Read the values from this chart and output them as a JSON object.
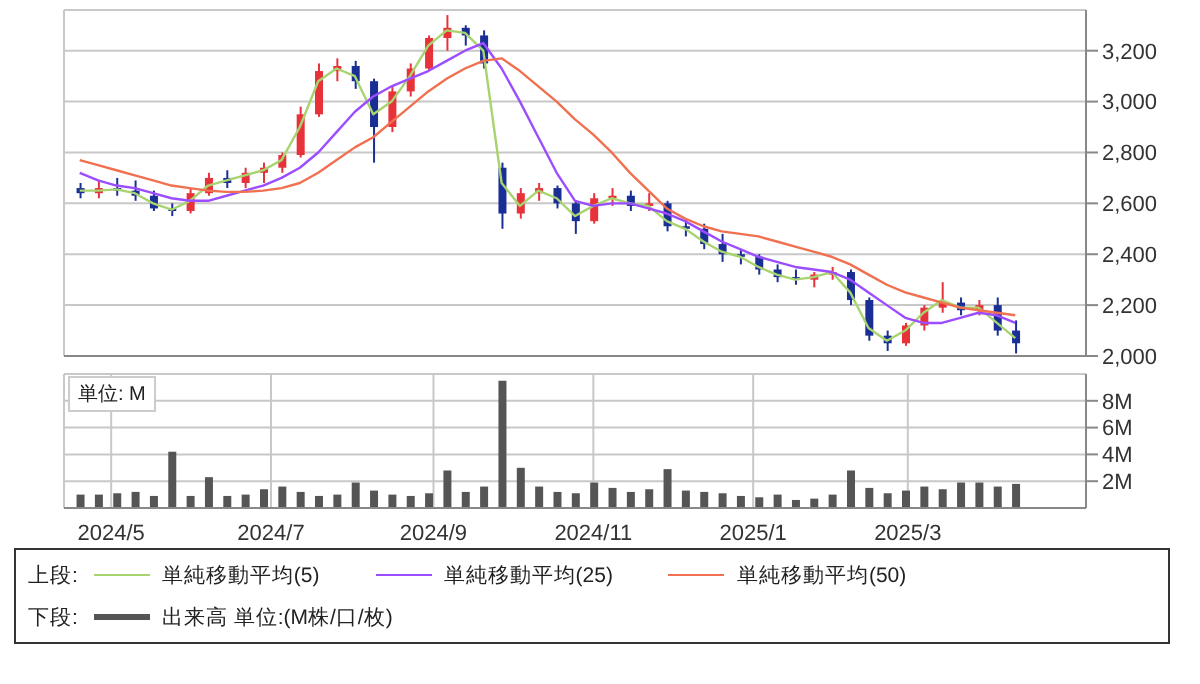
{
  "chart_data": [
    {
      "type": "candlestick",
      "legend_title": "上段:",
      "legend": "bottom",
      "grid": true,
      "tick_labels": "y",
      "x": [
        "2024-04-19",
        "2024-04-26",
        "2024-05-03",
        "2024-05-10",
        "2024-05-17",
        "2024-05-24",
        "2024-05-31",
        "2024-06-07",
        "2024-06-14",
        "2024-06-21",
        "2024-06-28",
        "2024-07-05",
        "2024-07-12",
        "2024-07-19",
        "2024-07-26",
        "2024-08-02",
        "2024-08-09",
        "2024-08-16",
        "2024-08-23",
        "2024-08-30",
        "2024-09-06",
        "2024-09-13",
        "2024-09-20",
        "2024-09-27",
        "2024-10-04",
        "2024-10-11",
        "2024-10-18",
        "2024-10-25",
        "2024-11-01",
        "2024-11-08",
        "2024-11-15",
        "2024-11-22",
        "2024-11-29",
        "2024-12-06",
        "2024-12-13",
        "2024-12-20",
        "2024-12-27",
        "2025-01-03",
        "2025-01-10",
        "2025-01-17",
        "2025-01-24",
        "2025-01-31",
        "2025-02-07",
        "2025-02-14",
        "2025-02-21",
        "2025-02-28",
        "2025-03-07",
        "2025-03-14",
        "2025-03-21",
        "2025-03-28",
        "2025-04-04",
        "2025-04-11"
      ],
      "ohlc": [
        [
          2660,
          2680,
          2620,
          2640
        ],
        [
          2640,
          2690,
          2620,
          2660
        ],
        [
          2660,
          2700,
          2630,
          2650
        ],
        [
          2650,
          2690,
          2610,
          2630
        ],
        [
          2630,
          2650,
          2570,
          2580
        ],
        [
          2580,
          2600,
          2550,
          2570
        ],
        [
          2570,
          2660,
          2560,
          2640
        ],
        [
          2640,
          2720,
          2630,
          2700
        ],
        [
          2700,
          2730,
          2660,
          2680
        ],
        [
          2680,
          2740,
          2660,
          2720
        ],
        [
          2720,
          2760,
          2680,
          2740
        ],
        [
          2740,
          2800,
          2720,
          2790
        ],
        [
          2790,
          2980,
          2780,
          2950
        ],
        [
          2950,
          3150,
          2940,
          3120
        ],
        [
          3120,
          3170,
          3080,
          3140
        ],
        [
          3140,
          3160,
          3050,
          3080
        ],
        [
          3080,
          3090,
          2760,
          2900
        ],
        [
          2900,
          3060,
          2880,
          3040
        ],
        [
          3040,
          3150,
          3020,
          3130
        ],
        [
          3130,
          3260,
          3120,
          3250
        ],
        [
          3250,
          3340,
          3200,
          3290
        ],
        [
          3290,
          3300,
          3220,
          3260
        ],
        [
          3260,
          3280,
          3130,
          3150
        ],
        [
          2740,
          2760,
          2500,
          2560
        ],
        [
          2560,
          2660,
          2540,
          2640
        ],
        [
          2640,
          2680,
          2610,
          2660
        ],
        [
          2660,
          2670,
          2580,
          2600
        ],
        [
          2600,
          2610,
          2480,
          2530
        ],
        [
          2530,
          2640,
          2520,
          2620
        ],
        [
          2620,
          2660,
          2590,
          2630
        ],
        [
          2630,
          2650,
          2570,
          2590
        ],
        [
          2590,
          2640,
          2570,
          2600
        ],
        [
          2600,
          2610,
          2490,
          2510
        ],
        [
          2510,
          2540,
          2470,
          2500
        ],
        [
          2500,
          2520,
          2420,
          2440
        ],
        [
          2440,
          2480,
          2370,
          2400
        ],
        [
          2400,
          2420,
          2360,
          2390
        ],
        [
          2390,
          2400,
          2320,
          2340
        ],
        [
          2340,
          2360,
          2290,
          2310
        ],
        [
          2310,
          2340,
          2280,
          2300
        ],
        [
          2300,
          2330,
          2270,
          2320
        ],
        [
          2320,
          2350,
          2300,
          2330
        ],
        [
          2330,
          2340,
          2200,
          2220
        ],
        [
          2220,
          2230,
          2060,
          2080
        ],
        [
          2080,
          2100,
          2020,
          2050
        ],
        [
          2050,
          2130,
          2040,
          2120
        ],
        [
          2120,
          2200,
          2100,
          2190
        ],
        [
          2190,
          2290,
          2170,
          2210
        ],
        [
          2210,
          2230,
          2160,
          2180
        ],
        [
          2180,
          2220,
          2160,
          2200
        ],
        [
          2200,
          2230,
          2080,
          2100
        ],
        [
          2100,
          2140,
          2010,
          2050
        ]
      ],
      "colors": [
        "#1a2f96",
        "#e8323a",
        "#1a2f96",
        "#1a2f96",
        "#1a2f96",
        "#1a2f96",
        "#e8323a",
        "#e8323a",
        "#1a2f96",
        "#e8323a",
        "#e8323a",
        "#e8323a",
        "#e8323a",
        "#e8323a",
        "#e8323a",
        "#1a2f96",
        "#1a2f96",
        "#e8323a",
        "#e8323a",
        "#e8323a",
        "#e8323a",
        "#1a2f96",
        "#1a2f96",
        "#1a2f96",
        "#e8323a",
        "#e8323a",
        "#1a2f96",
        "#1a2f96",
        "#e8323a",
        "#e8323a",
        "#1a2f96",
        "#e8323a",
        "#1a2f96",
        "#1a2f96",
        "#1a2f96",
        "#1a2f96",
        "#1a2f96",
        "#1a2f96",
        "#1a2f96",
        "#1a2f96",
        "#e8323a",
        "#e8323a",
        "#1a2f96",
        "#1a2f96",
        "#1a2f96",
        "#e8323a",
        "#e8323a",
        "#e8323a",
        "#1a2f96",
        "#e8323a",
        "#1a2f96",
        "#1a2f96"
      ],
      "series": [
        {
          "type": "line",
          "name": "単純移動平均(5)",
          "color": "#a8d46f",
          "values": [
            2650,
            2650,
            2655,
            2640,
            2600,
            2575,
            2610,
            2670,
            2690,
            2710,
            2730,
            2770,
            2900,
            3080,
            3130,
            3100,
            2950,
            3000,
            3100,
            3220,
            3280,
            3270,
            3200,
            2680,
            2590,
            2650,
            2620,
            2550,
            2590,
            2620,
            2600,
            2590,
            2530,
            2500,
            2450,
            2410,
            2390,
            2350,
            2320,
            2300,
            2310,
            2330,
            2250,
            2110,
            2060,
            2100,
            2170,
            2220,
            2190,
            2190,
            2130,
            2070
          ]
        },
        {
          "type": "line",
          "name": "単純移動平均(25)",
          "color": "#9b4dff",
          "values": [
            2720,
            2690,
            2670,
            2660,
            2640,
            2620,
            2610,
            2610,
            2630,
            2650,
            2670,
            2700,
            2740,
            2800,
            2880,
            2960,
            3020,
            3060,
            3090,
            3120,
            3160,
            3200,
            3230,
            3130,
            3000,
            2860,
            2720,
            2610,
            2590,
            2600,
            2600,
            2580,
            2560,
            2530,
            2490,
            2450,
            2420,
            2390,
            2370,
            2350,
            2340,
            2330,
            2300,
            2250,
            2200,
            2150,
            2130,
            2130,
            2150,
            2170,
            2160,
            2130
          ]
        },
        {
          "type": "line",
          "name": "単純移動平均(50)",
          "color": "#f07050",
          "values": [
            2770,
            2750,
            2730,
            2710,
            2690,
            2670,
            2660,
            2650,
            2645,
            2645,
            2650,
            2660,
            2680,
            2720,
            2770,
            2820,
            2860,
            2920,
            2980,
            3040,
            3090,
            3130,
            3160,
            3170,
            3120,
            3060,
            3000,
            2930,
            2870,
            2800,
            2720,
            2650,
            2580,
            2540,
            2510,
            2490,
            2480,
            2470,
            2450,
            2430,
            2410,
            2390,
            2360,
            2320,
            2280,
            2250,
            2230,
            2210,
            2190,
            2180,
            2170,
            2160
          ]
        }
      ],
      "xlim": [
        "2024-04-13",
        "2025-05-08"
      ],
      "xticks": [
        {
          "value": "2024-05-01",
          "label": null
        },
        {
          "value": "2024-07-01",
          "label": null
        },
        {
          "value": "2024-09-01",
          "label": null
        },
        {
          "value": "2024-11-01",
          "label": null
        },
        {
          "value": "2025-01-01",
          "label": null
        },
        {
          "value": "2025-03-01",
          "label": null
        }
      ],
      "ylim": [
        2000,
        3360
      ],
      "yticks": [
        {
          "value": 2000,
          "label": "2,000"
        },
        {
          "value": 2200,
          "label": "2,200"
        },
        {
          "value": 2400,
          "label": "2,400"
        },
        {
          "value": 2600,
          "label": "2,600"
        },
        {
          "value": 2800,
          "label": "2,800"
        },
        {
          "value": 3000,
          "label": "3,000"
        },
        {
          "value": 3200,
          "label": "3,200"
        }
      ]
    },
    {
      "type": "bar",
      "legend_title": "下段:",
      "legend": "bottom",
      "grid": true,
      "annotations": [
        "単位: M"
      ],
      "x": [
        "2024-04-19",
        "2024-04-26",
        "2024-05-03",
        "2024-05-10",
        "2024-05-17",
        "2024-05-24",
        "2024-05-31",
        "2024-06-07",
        "2024-06-14",
        "2024-06-21",
        "2024-06-28",
        "2024-07-05",
        "2024-07-12",
        "2024-07-19",
        "2024-07-26",
        "2024-08-02",
        "2024-08-09",
        "2024-08-16",
        "2024-08-23",
        "2024-08-30",
        "2024-09-06",
        "2024-09-13",
        "2024-09-20",
        "2024-09-27",
        "2024-10-04",
        "2024-10-11",
        "2024-10-18",
        "2024-10-25",
        "2024-11-01",
        "2024-11-08",
        "2024-11-15",
        "2024-11-22",
        "2024-11-29",
        "2024-12-06",
        "2024-12-13",
        "2024-12-20",
        "2024-12-27",
        "2025-01-03",
        "2025-01-10",
        "2025-01-17",
        "2025-01-24",
        "2025-01-31",
        "2025-02-07",
        "2025-02-14",
        "2025-02-21",
        "2025-02-28",
        "2025-03-07",
        "2025-03-14",
        "2025-03-21",
        "2025-03-28",
        "2025-04-04",
        "2025-04-11"
      ],
      "series": [
        {
          "name": "出来高 単位:(M株/口/枚)",
          "color": "#555555",
          "values": [
            1.0,
            1.0,
            1.1,
            1.2,
            0.9,
            4.2,
            0.9,
            2.3,
            0.9,
            1.0,
            1.4,
            1.6,
            1.2,
            0.9,
            1.0,
            1.9,
            1.3,
            1.0,
            0.9,
            1.1,
            2.8,
            1.2,
            1.6,
            9.5,
            3.0,
            1.6,
            1.2,
            1.1,
            1.9,
            1.5,
            1.2,
            1.4,
            2.9,
            1.3,
            1.2,
            1.1,
            0.9,
            0.8,
            1.0,
            0.6,
            0.7,
            1.0,
            2.8,
            1.5,
            1.1,
            1.3,
            1.6,
            1.4,
            1.9,
            1.9,
            1.6,
            1.8
          ]
        }
      ],
      "xlim": [
        "2024-04-13",
        "2025-05-08"
      ],
      "xticks": [
        {
          "value": "2024-05-01",
          "label": "2024/5"
        },
        {
          "value": "2024-07-01",
          "label": "2024/7"
        },
        {
          "value": "2024-09-01",
          "label": "2024/9"
        },
        {
          "value": "2024-11-01",
          "label": "2024/11"
        },
        {
          "value": "2025-01-01",
          "label": "2025/1"
        },
        {
          "value": "2025-03-01",
          "label": "2025/3"
        }
      ],
      "ylim": [
        0,
        10
      ],
      "yticks": [
        {
          "value": 2,
          "label": "2M"
        },
        {
          "value": 4,
          "label": "4M"
        },
        {
          "value": 6,
          "label": "6M"
        },
        {
          "value": 8,
          "label": "8M"
        }
      ]
    }
  ]
}
